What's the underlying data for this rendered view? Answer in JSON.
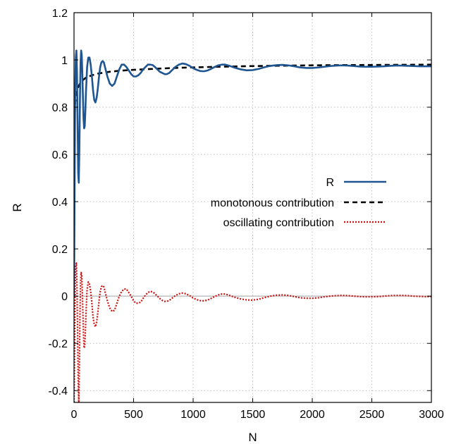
{
  "chart_data": {
    "type": "line",
    "xlabel": "N",
    "ylabel": "R",
    "xlim": [
      0,
      3000
    ],
    "ylim": [
      -0.45,
      1.2
    ],
    "xticks": [
      0,
      500,
      1000,
      1500,
      2000,
      2500,
      3000
    ],
    "xtick_labels": [
      "0",
      "500",
      "1000",
      "1500",
      "2000",
      "2500",
      "3000"
    ],
    "yticks": [
      -0.4,
      -0.2,
      0,
      0.2,
      0.4,
      0.6,
      0.8,
      1,
      1.2
    ],
    "ytick_labels": [
      "-0.4",
      "-0.2",
      "0",
      "0.2",
      "0.4",
      "0.6",
      "0.8",
      "1",
      "1.2"
    ],
    "grid": true,
    "zero_line": true,
    "legend_position": "center-right",
    "series": [
      {
        "name": "R",
        "color": "#1f5591",
        "style": "solid",
        "x": [
          0,
          5,
          10,
          15,
          20,
          25,
          30,
          35,
          40,
          45,
          50,
          55,
          60,
          65,
          70,
          75,
          80,
          85,
          90,
          95,
          100,
          110,
          120,
          130,
          140,
          150,
          160,
          170,
          180,
          190,
          200,
          210,
          220,
          230,
          240,
          250,
          260,
          280,
          300,
          320,
          340,
          360,
          380,
          400,
          420,
          440,
          460,
          480,
          500,
          520,
          540,
          560,
          580,
          600,
          620,
          640,
          660,
          680,
          700,
          720,
          740,
          760,
          780,
          800,
          820,
          850,
          880,
          910,
          940,
          970,
          1000,
          1030,
          1060,
          1090,
          1120,
          1150,
          1180,
          1210,
          1240,
          1270,
          1300,
          1350,
          1400,
          1450,
          1500,
          1550,
          1600,
          1650,
          1700,
          1750,
          1800,
          1850,
          1900,
          1950,
          2000,
          2050,
          2100,
          2150,
          2200,
          2250,
          2300,
          2350,
          2400,
          2450,
          2500,
          2550,
          2600,
          2650,
          2700,
          2750,
          2800,
          2850,
          2900,
          2950,
          3000
        ],
        "y": [
          0.0,
          0.45,
          0.88,
          1.01,
          1.04,
          0.95,
          0.74,
          0.52,
          0.48,
          0.62,
          0.84,
          0.99,
          1.04,
          1.02,
          0.94,
          0.84,
          0.75,
          0.71,
          0.72,
          0.78,
          0.86,
          0.97,
          1.01,
          1.01,
          0.98,
          0.93,
          0.87,
          0.83,
          0.82,
          0.84,
          0.88,
          0.93,
          0.97,
          0.99,
          0.995,
          0.99,
          0.97,
          0.93,
          0.9,
          0.89,
          0.9,
          0.93,
          0.96,
          0.98,
          0.98,
          0.97,
          0.955,
          0.94,
          0.93,
          0.93,
          0.935,
          0.945,
          0.96,
          0.97,
          0.98,
          0.98,
          0.978,
          0.97,
          0.96,
          0.95,
          0.945,
          0.94,
          0.94,
          0.945,
          0.955,
          0.97,
          0.98,
          0.985,
          0.982,
          0.975,
          0.965,
          0.958,
          0.953,
          0.952,
          0.955,
          0.962,
          0.97,
          0.977,
          0.98,
          0.98,
          0.976,
          0.967,
          0.96,
          0.956,
          0.957,
          0.962,
          0.969,
          0.975,
          0.978,
          0.979,
          0.977,
          0.973,
          0.968,
          0.966,
          0.966,
          0.968,
          0.971,
          0.974,
          0.976,
          0.977,
          0.976,
          0.974,
          0.972,
          0.971,
          0.971,
          0.972,
          0.973,
          0.975,
          0.976,
          0.976,
          0.975,
          0.974,
          0.973,
          0.973,
          0.973
        ]
      },
      {
        "name": "monotonous contribution",
        "color": "#000000",
        "style": "dashed",
        "x": [
          5,
          10,
          20,
          30,
          50,
          75,
          100,
          150,
          200,
          300,
          400,
          500,
          700,
          900,
          1200,
          1500,
          1800,
          2200,
          2600,
          3000
        ],
        "y": [
          0.74,
          0.82,
          0.86,
          0.88,
          0.9,
          0.915,
          0.925,
          0.935,
          0.942,
          0.95,
          0.955,
          0.958,
          0.963,
          0.967,
          0.971,
          0.974,
          0.976,
          0.978,
          0.979,
          0.98
        ]
      },
      {
        "name": "oscillating contribution",
        "color": "#cc1111",
        "style": "dotted",
        "x": [
          0,
          5,
          10,
          15,
          20,
          25,
          30,
          35,
          40,
          45,
          50,
          55,
          60,
          65,
          70,
          75,
          80,
          85,
          90,
          95,
          100,
          110,
          120,
          130,
          140,
          150,
          160,
          170,
          180,
          190,
          200,
          210,
          220,
          230,
          240,
          250,
          260,
          280,
          300,
          320,
          340,
          360,
          380,
          400,
          420,
          440,
          460,
          480,
          500,
          520,
          540,
          560,
          580,
          600,
          620,
          640,
          660,
          680,
          700,
          720,
          740,
          760,
          780,
          800,
          820,
          850,
          880,
          910,
          940,
          970,
          1000,
          1030,
          1060,
          1090,
          1120,
          1150,
          1180,
          1210,
          1240,
          1270,
          1300,
          1350,
          1400,
          1450,
          1500,
          1550,
          1600,
          1650,
          1700,
          1750,
          1800,
          1850,
          1900,
          1950,
          2000,
          2050,
          2100,
          2150,
          2200,
          2250,
          2300,
          2350,
          2400,
          2450,
          2500,
          2550,
          2600,
          2650,
          2700,
          2750,
          2800,
          2850,
          2900,
          2950,
          3000
        ],
        "y": [
          -0.45,
          -0.2,
          0.05,
          0.13,
          0.14,
          0.05,
          -0.15,
          -0.36,
          -0.45,
          -0.3,
          -0.08,
          0.06,
          0.1,
          0.09,
          0.02,
          -0.08,
          -0.17,
          -0.22,
          -0.21,
          -0.16,
          -0.08,
          0.03,
          0.06,
          0.05,
          0.02,
          -0.03,
          -0.09,
          -0.12,
          -0.13,
          -0.11,
          -0.07,
          -0.02,
          0.02,
          0.04,
          0.045,
          0.04,
          0.02,
          -0.02,
          -0.05,
          -0.065,
          -0.06,
          -0.03,
          0.0,
          0.02,
          0.03,
          0.03,
          0.015,
          0.0,
          -0.02,
          -0.03,
          -0.03,
          -0.025,
          -0.01,
          0.005,
          0.015,
          0.02,
          0.018,
          0.01,
          0.0,
          -0.01,
          -0.018,
          -0.022,
          -0.022,
          -0.018,
          -0.01,
          0.002,
          0.01,
          0.013,
          0.01,
          0.002,
          -0.008,
          -0.015,
          -0.019,
          -0.02,
          -0.017,
          -0.01,
          -0.002,
          0.005,
          0.009,
          0.009,
          0.004,
          -0.005,
          -0.012,
          -0.016,
          -0.017,
          -0.013,
          -0.006,
          0.0,
          0.004,
          0.005,
          0.003,
          -0.002,
          -0.007,
          -0.009,
          -0.009,
          -0.007,
          -0.003,
          0.0,
          0.002,
          0.003,
          0.002,
          0.0,
          -0.002,
          -0.003,
          -0.003,
          -0.002,
          0.0,
          0.002,
          0.003,
          0.003,
          0.002,
          0.0,
          -0.001,
          -0.002,
          -0.002
        ]
      }
    ]
  }
}
